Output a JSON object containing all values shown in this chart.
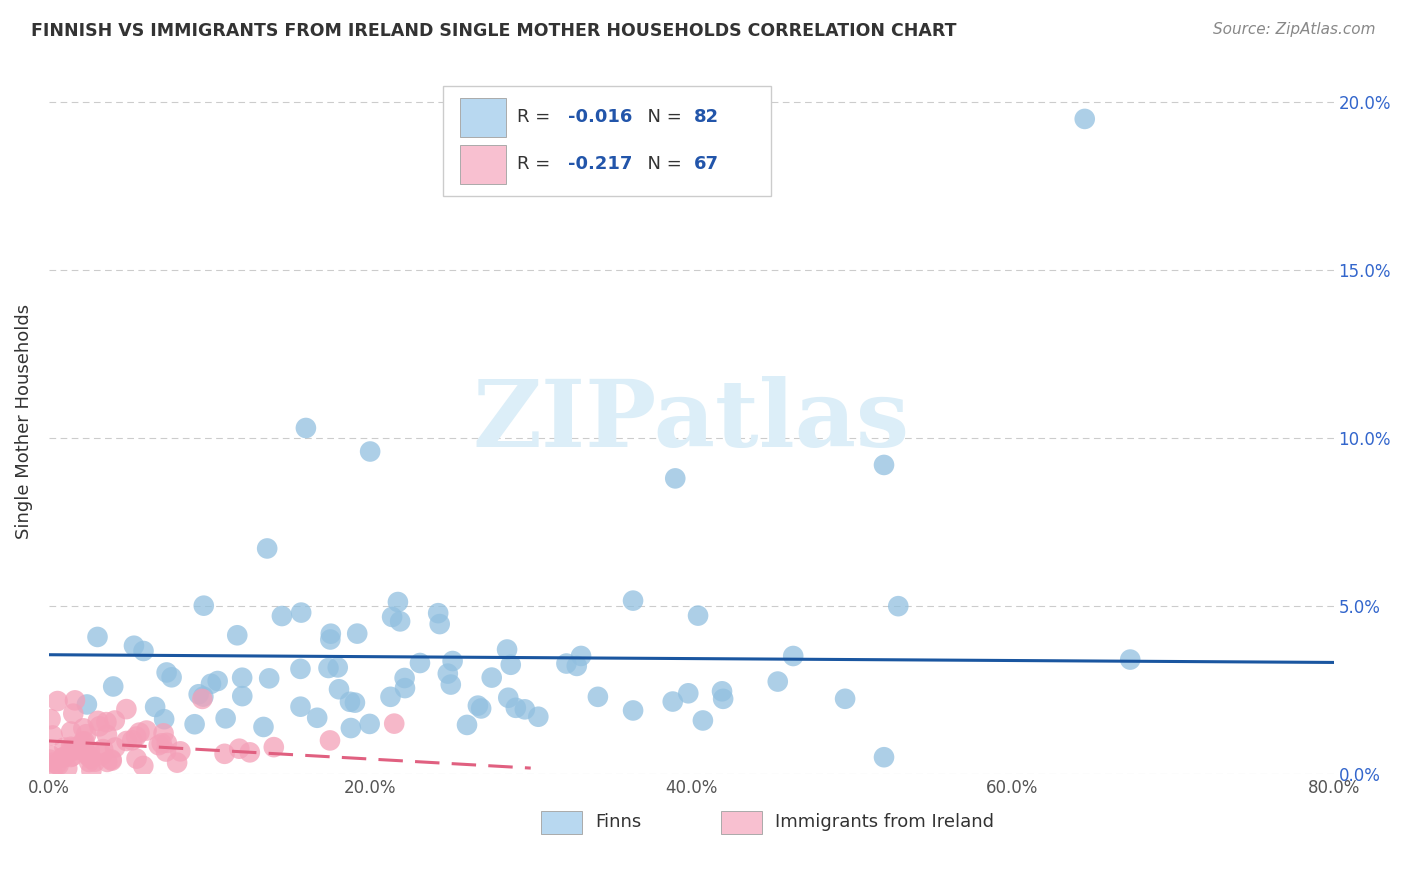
{
  "title": "FINNISH VS IMMIGRANTS FROM IRELAND SINGLE MOTHER HOUSEHOLDS CORRELATION CHART",
  "source": "Source: ZipAtlas.com",
  "ylabel": "Single Mother Households",
  "xlim": [
    0.0,
    0.8
  ],
  "ylim": [
    0.0,
    0.21
  ],
  "xticks": [
    0.0,
    0.1,
    0.2,
    0.3,
    0.4,
    0.5,
    0.6,
    0.7,
    0.8
  ],
  "xticklabels": [
    "0.0%",
    "",
    "20.0%",
    "",
    "40.0%",
    "",
    "60.0%",
    "",
    "80.0%"
  ],
  "yticks": [
    0.0,
    0.05,
    0.1,
    0.15,
    0.2
  ],
  "yticklabels_right": [
    "0.0%",
    "5.0%",
    "10.0%",
    "15.0%",
    "20.0%"
  ],
  "finns_color": "#92c0e0",
  "ireland_color": "#f4a0b8",
  "finns_line_color": "#1a56a0",
  "ireland_line_color": "#e06080",
  "watermark_text": "ZIPatlas",
  "watermark_color": "#dceef8",
  "background_color": "#ffffff",
  "grid_color": "#cccccc",
  "finns_R": -0.016,
  "finns_N": 82,
  "ireland_R": -0.217,
  "ireland_N": 67,
  "legend_finns_color": "#b8d8f0",
  "legend_ireland_color": "#f8c0d0",
  "r_n_color": "#2255aa",
  "title_color": "#333333",
  "source_color": "#888888",
  "tick_color": "#555555",
  "right_tick_color": "#3366cc"
}
